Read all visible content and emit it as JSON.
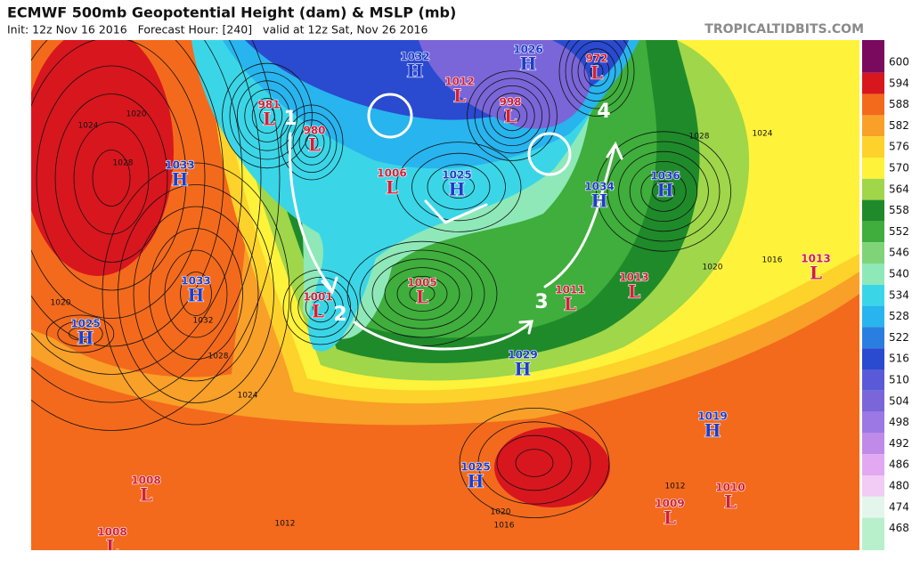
{
  "header": {
    "title": "ECMWF 500mb Geopotential Height (dam) & MSLP (mb)",
    "subtitle": "Init: 12z Nov 16 2016   Forecast Hour: [240]   valid at 12z Sat, Nov 26 2016",
    "site": "TROPICALTIDBITS.COM"
  },
  "colorbar": {
    "levels": [
      {
        "value": "600",
        "color": "#7a0a5e"
      },
      {
        "value": "594",
        "color": "#d8161e"
      },
      {
        "value": "588",
        "color": "#f36a1c"
      },
      {
        "value": "582",
        "color": "#f8a028"
      },
      {
        "value": "576",
        "color": "#fdd22a"
      },
      {
        "value": "570",
        "color": "#fff23a"
      },
      {
        "value": "564",
        "color": "#9fd64a"
      },
      {
        "value": "558",
        "color": "#1f8a2a"
      },
      {
        "value": "552",
        "color": "#3fae3c"
      },
      {
        "value": "546",
        "color": "#7fd47a"
      },
      {
        "value": "540",
        "color": "#8fe8b8"
      },
      {
        "value": "534",
        "color": "#3ad6e8"
      },
      {
        "value": "528",
        "color": "#28b4ee"
      },
      {
        "value": "522",
        "color": "#2a7ee0"
      },
      {
        "value": "516",
        "color": "#2a4ad0"
      },
      {
        "value": "510",
        "color": "#5a5ad8"
      },
      {
        "value": "504",
        "color": "#7a66d8"
      },
      {
        "value": "498",
        "color": "#9c78e4"
      },
      {
        "value": "492",
        "color": "#c08ae8"
      },
      {
        "value": "486",
        "color": "#e2a8f2"
      },
      {
        "value": "480",
        "color": "#f2ccf4"
      },
      {
        "value": "474",
        "color": "#e4f6ec"
      },
      {
        "value": "468",
        "color": "#b8f0cc"
      }
    ]
  },
  "centers": [
    {
      "pressure": "981",
      "type": "L"
    },
    {
      "pressure": "980",
      "type": "L"
    },
    {
      "pressure": "1033",
      "type": "H"
    },
    {
      "pressure": "1032",
      "type": "H"
    },
    {
      "pressure": "1012",
      "type": "L"
    },
    {
      "pressure": "998",
      "type": "L"
    },
    {
      "pressure": "1026",
      "type": "H"
    },
    {
      "pressure": "972",
      "type": "L"
    },
    {
      "pressure": "1006",
      "type": "L"
    },
    {
      "pressure": "1025",
      "type": "H"
    },
    {
      "pressure": "1034",
      "type": "H"
    },
    {
      "pressure": "1036",
      "type": "H"
    },
    {
      "pressure": "1033",
      "type": "H"
    },
    {
      "pressure": "1025",
      "type": "H"
    },
    {
      "pressure": "1001",
      "type": "L"
    },
    {
      "pressure": "1005",
      "type": "L"
    },
    {
      "pressure": "1011",
      "type": "L"
    },
    {
      "pressure": "1013",
      "type": "L"
    },
    {
      "pressure": "1013",
      "type": "L"
    },
    {
      "pressure": "1029",
      "type": "H"
    },
    {
      "pressure": "1019",
      "type": "H"
    },
    {
      "pressure": "1025",
      "type": "H"
    },
    {
      "pressure": "1008",
      "type": "L"
    },
    {
      "pressure": "1008",
      "type": "L"
    },
    {
      "pressure": "1009",
      "type": "L"
    },
    {
      "pressure": "1010",
      "type": "L"
    }
  ],
  "annotations": [
    "1",
    "2",
    "3",
    "4"
  ],
  "isobar_labels": [
    "1020",
    "1024",
    "1028",
    "1032",
    "1028",
    "1024",
    "1020",
    "1016",
    "1020",
    "1024",
    "1028",
    "1012",
    "1012",
    "1020",
    "1016"
  ]
}
